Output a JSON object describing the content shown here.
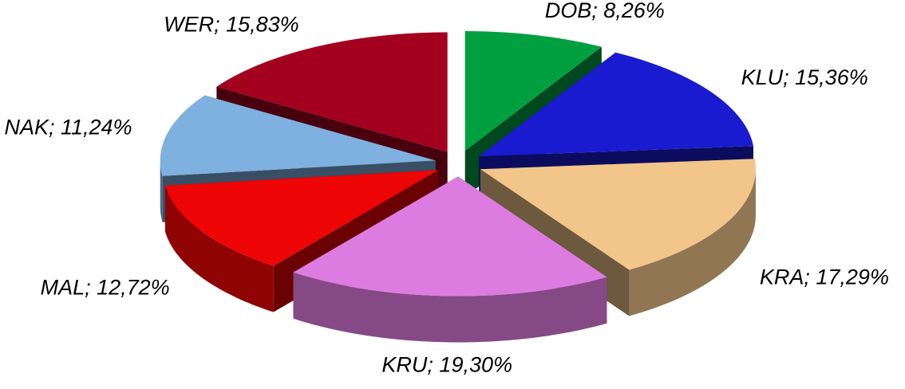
{
  "chart_data": {
    "type": "pie",
    "values": [
      8.26,
      15.36,
      17.29,
      19.3,
      12.72,
      11.24,
      15.83
    ],
    "value_labels": [
      "DOB; 8,26%",
      "KLU; 15,36%",
      "KRA; 17,29%",
      "KRU; 19,30%",
      "MAL; 12,72%",
      "NAK; 11,24%",
      "WER; 15,83%"
    ],
    "colors": [
      "#00a040",
      "#1a1ad0",
      "#f2c58a",
      "#dd7ce0",
      "#ee0505",
      "#7eb0e0",
      "#a3001f"
    ]
  }
}
